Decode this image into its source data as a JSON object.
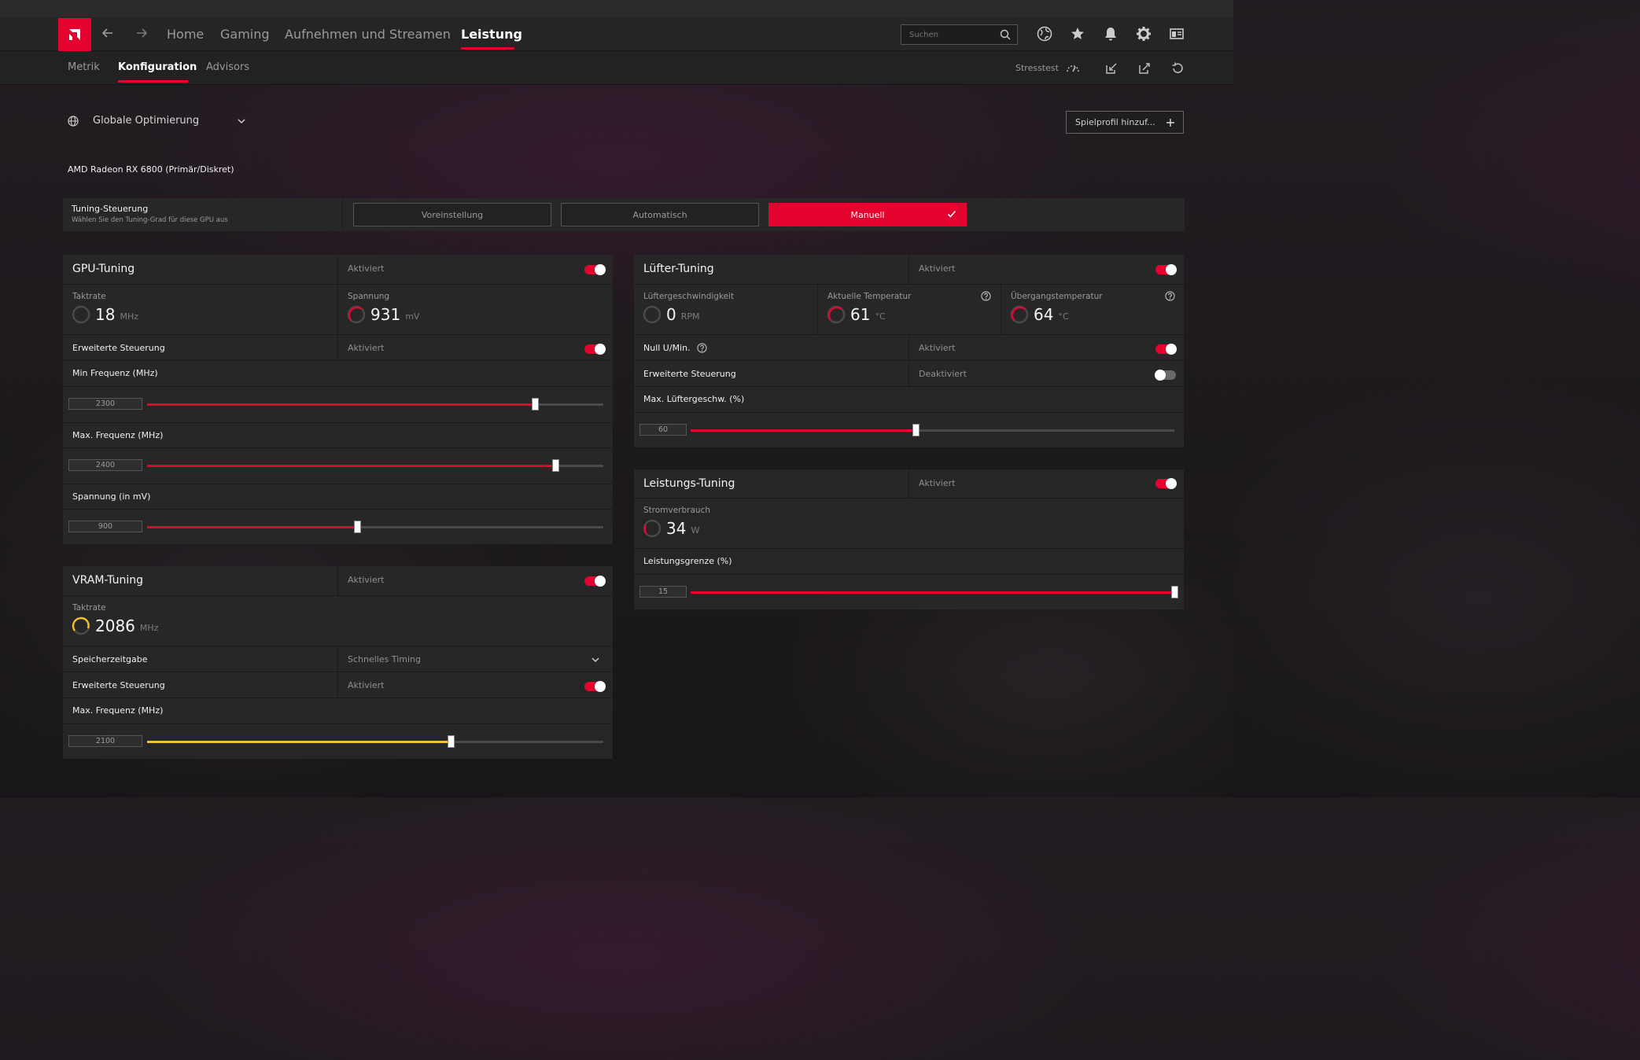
{
  "nav": {
    "items": [
      "Home",
      "Gaming",
      "Aufnehmen und Streamen",
      "Leistung"
    ],
    "active": "Leistung",
    "search_placeholder": "Suchen"
  },
  "subnav": {
    "items": [
      "Metrik",
      "Konfiguration",
      "Advisors"
    ],
    "active": "Konfiguration",
    "stress_label": "Stresstest"
  },
  "profile": {
    "name": "Globale Optimierung",
    "add_label": "Spielprofil hinzuf..."
  },
  "gpu_name": "AMD Radeon RX 6800 (Primär/Diskret)",
  "tuning_control": {
    "title": "Tuning-Steuerung",
    "subtitle": "Wählen Sie den Tuning-Grad für diese GPU aus",
    "options": [
      "Voreinstellung",
      "Automatisch",
      "Manuell"
    ],
    "selected": "Manuell"
  },
  "gpu_tuning": {
    "title": "GPU-Tuning",
    "status": "Aktiviert",
    "enabled": true,
    "clock_label": "Taktrate",
    "clock_value": "18",
    "clock_unit": "MHz",
    "voltage_label": "Spannung",
    "voltage_value": "931",
    "voltage_unit": "mV",
    "advanced_label": "Erweiterte Steuerung",
    "advanced_status": "Aktiviert",
    "advanced_enabled": true,
    "sliders": [
      {
        "label": "Min Frequenz (MHz)",
        "value": "2300",
        "fraction": 0.85
      },
      {
        "label": "Max. Frequenz (MHz)",
        "value": "2400",
        "fraction": 0.895
      },
      {
        "label": "Spannung (in mV)",
        "value": "900",
        "fraction": 0.46
      }
    ]
  },
  "vram_tuning": {
    "title": "VRAM-Tuning",
    "status": "Aktiviert",
    "enabled": true,
    "clock_label": "Taktrate",
    "clock_value": "2086",
    "clock_unit": "MHz",
    "memory_timing_label": "Speicherzeitgabe",
    "memory_timing_value": "Schnelles Timing",
    "advanced_label": "Erweiterte Steuerung",
    "advanced_status": "Aktiviert",
    "advanced_enabled": true,
    "slider": {
      "label": "Max. Frequenz (MHz)",
      "value": "2100",
      "fraction": 0.665
    }
  },
  "fan_tuning": {
    "title": "Lüfter-Tuning",
    "status": "Aktiviert",
    "enabled": true,
    "speed_label": "Lüftergeschwindigkeit",
    "speed_value": "0",
    "speed_unit": "RPM",
    "temp_label": "Aktuelle Temperatur",
    "temp_value": "61",
    "temp_unit": "°C",
    "junction_label": "Übergangstemperatur",
    "junction_value": "64",
    "junction_unit": "°C",
    "zero_rpm_label": "Null U/Min.",
    "zero_rpm_status": "Aktiviert",
    "zero_rpm_enabled": true,
    "advanced_label": "Erweiterte Steuerung",
    "advanced_status": "Deaktiviert",
    "advanced_enabled": false,
    "slider": {
      "label": "Max. Lüftergeschw. (%)",
      "value": "60",
      "fraction": 0.465
    }
  },
  "power_tuning": {
    "title": "Leistungs-Tuning",
    "status": "Aktiviert",
    "enabled": true,
    "power_label": "Stromverbrauch",
    "power_value": "34",
    "power_unit": "W",
    "slider": {
      "label": "Leistungsgrenze (%)",
      "value": "15",
      "fraction": 1.0
    }
  },
  "colors": {
    "accent": "#e4032e",
    "vram_accent": "#f5c02a",
    "panel_bg": "#282828",
    "topbar_bg": "#252525"
  },
  "icons": [
    "amd-logo-icon",
    "back-arrow-icon",
    "forward-arrow-icon",
    "search-icon",
    "globe-icon",
    "star-icon",
    "bell-icon",
    "gear-icon",
    "layout-icon",
    "stress-gauge-icon",
    "import-icon",
    "export-icon",
    "reset-icon",
    "chevron-down-icon",
    "plus-icon",
    "check-icon",
    "help-icon"
  ]
}
